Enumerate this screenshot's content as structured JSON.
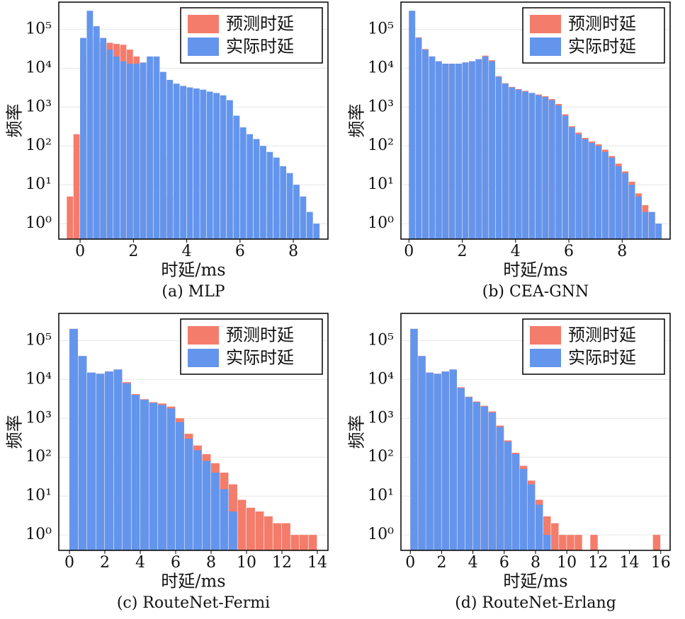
{
  "chart_data": [
    {
      "type": "histogram",
      "caption": "(a) MLP",
      "xlabel": "时延/ms",
      "ylabel": "频率",
      "log_y": true,
      "grid": true,
      "legend": "upper right",
      "bins": [
        -0.5,
        -0.25,
        0,
        0.25,
        0.5,
        0.75,
        1,
        1.25,
        1.5,
        1.75,
        2,
        2.25,
        2.5,
        2.75,
        3,
        3.25,
        3.5,
        3.75,
        4,
        4.25,
        4.5,
        4.75,
        5,
        5.25,
        5.5,
        5.75,
        6,
        6.25,
        6.5,
        6.75,
        7,
        7.25,
        7.5,
        7.75,
        8,
        8.25,
        8.5,
        8.75,
        9
      ],
      "series": [
        {
          "name": "预测时延",
          "color": "#f47c6b",
          "values": [
            5,
            200,
            20000,
            60000,
            50000,
            45000,
            45000,
            42000,
            40000,
            30000,
            20000,
            10000,
            3000,
            500,
            50,
            5,
            0,
            0,
            0,
            0,
            0,
            0,
            0,
            0,
            0,
            0,
            0,
            0,
            0,
            0,
            0,
            0,
            0,
            0,
            0,
            0,
            0,
            0
          ]
        },
        {
          "name": "实际时延",
          "color": "#6495ed",
          "values": [
            0,
            0,
            60000,
            300000,
            120000,
            60000,
            30000,
            20000,
            15000,
            13000,
            13000,
            14000,
            20000,
            20000,
            8000,
            5000,
            4000,
            3500,
            3200,
            3000,
            2800,
            2500,
            2300,
            2000,
            1500,
            600,
            300,
            200,
            150,
            100,
            70,
            50,
            30,
            20,
            10,
            5,
            2,
            1
          ]
        }
      ],
      "xlim": [
        -0.8,
        9.3
      ],
      "xticks": [
        0,
        2,
        4,
        6,
        8
      ],
      "ylim": [
        0.4,
        500000
      ],
      "yticks": [
        {
          "value": 1,
          "label": "10⁰"
        },
        {
          "value": 10,
          "label": "10¹"
        },
        {
          "value": 100,
          "label": "10²"
        },
        {
          "value": 1000,
          "label": "10³"
        },
        {
          "value": 10000,
          "label": "10⁴"
        },
        {
          "value": 100000,
          "label": "10⁵"
        }
      ]
    },
    {
      "type": "histogram",
      "caption": "(b) CEA-GNN",
      "xlabel": "时延/ms",
      "ylabel": "频率",
      "log_y": true,
      "grid": true,
      "legend": "upper right",
      "bins": [
        0,
        0.25,
        0.5,
        0.75,
        1,
        1.25,
        1.5,
        1.75,
        2,
        2.25,
        2.5,
        2.75,
        3,
        3.25,
        3.5,
        3.75,
        4,
        4.25,
        4.5,
        4.75,
        5,
        5.25,
        5.5,
        5.75,
        6,
        6.25,
        6.5,
        6.75,
        7,
        7.25,
        7.5,
        7.75,
        8,
        8.25,
        8.5,
        8.75,
        9,
        9.25,
        9.5
      ],
      "series": [
        {
          "name": "预测时延",
          "color": "#f47c6b",
          "values": [
            290000,
            62000,
            31000,
            20000,
            15000,
            13000,
            13000,
            13000,
            14000,
            15000,
            17000,
            21000,
            16000,
            6200,
            4100,
            3300,
            2900,
            2600,
            2300,
            2100,
            1900,
            1600,
            1200,
            650,
            320,
            220,
            160,
            130,
            110,
            80,
            55,
            35,
            22,
            12,
            6,
            3,
            2,
            1
          ]
        },
        {
          "name": "实际时延",
          "color": "#6495ed",
          "values": [
            300000,
            60000,
            30000,
            20000,
            15000,
            13000,
            13000,
            13000,
            14000,
            15000,
            17000,
            20000,
            15000,
            6000,
            4000,
            3200,
            2800,
            2500,
            2300,
            2000,
            1800,
            1500,
            1100,
            600,
            300,
            200,
            150,
            120,
            100,
            70,
            50,
            30,
            20,
            10,
            5,
            2,
            2,
            1
          ]
        }
      ],
      "xlim": [
        -0.3,
        9.8
      ],
      "xticks": [
        0,
        2,
        4,
        6,
        8
      ],
      "ylim": [
        0.4,
        500000
      ],
      "yticks": [
        {
          "value": 1,
          "label": "10⁰"
        },
        {
          "value": 10,
          "label": "10¹"
        },
        {
          "value": 100,
          "label": "10²"
        },
        {
          "value": 1000,
          "label": "10³"
        },
        {
          "value": 10000,
          "label": "10⁴"
        },
        {
          "value": 100000,
          "label": "10⁵"
        }
      ]
    },
    {
      "type": "histogram",
      "caption": "(c) RouteNet-Fermi",
      "xlabel": "时延/ms",
      "ylabel": "频率",
      "log_y": true,
      "grid": true,
      "legend": "upper right",
      "bins": [
        0,
        0.5,
        1,
        1.5,
        2,
        2.5,
        3,
        3.5,
        4,
        4.5,
        5,
        5.5,
        6,
        6.5,
        7,
        7.5,
        8,
        8.5,
        9,
        9.5,
        10,
        10.5,
        11,
        11.5,
        12,
        12.5,
        13,
        13.5,
        14
      ],
      "series": [
        {
          "name": "预测时延",
          "color": "#f47c6b",
          "values": [
            200000,
            40000,
            15000,
            14000,
            16000,
            18000,
            8500,
            4200,
            3100,
            2600,
            2400,
            2000,
            1000,
            400,
            200,
            120,
            70,
            40,
            20,
            8,
            5,
            4,
            3,
            2,
            2,
            1,
            1,
            1
          ]
        },
        {
          "name": "实际时延",
          "color": "#6495ed",
          "values": [
            200000,
            40000,
            15000,
            14000,
            16000,
            18000,
            8000,
            4000,
            3000,
            2500,
            2200,
            1800,
            800,
            300,
            150,
            80,
            40,
            15,
            4,
            0,
            0,
            0,
            0,
            0,
            0,
            0,
            0,
            0
          ]
        }
      ],
      "xlim": [
        -0.6,
        14.6
      ],
      "xticks": [
        0,
        2,
        4,
        6,
        8,
        10,
        12,
        14
      ],
      "ylim": [
        0.4,
        500000
      ],
      "yticks": [
        {
          "value": 1,
          "label": "10⁰"
        },
        {
          "value": 10,
          "label": "10¹"
        },
        {
          "value": 100,
          "label": "10²"
        },
        {
          "value": 1000,
          "label": "10³"
        },
        {
          "value": 10000,
          "label": "10⁴"
        },
        {
          "value": 100000,
          "label": "10⁵"
        }
      ]
    },
    {
      "type": "histogram",
      "caption": "(d) RouteNet-Erlang",
      "xlabel": "时延/ms",
      "ylabel": "频率",
      "log_y": true,
      "grid": true,
      "legend": "upper right",
      "bins": [
        0,
        0.5,
        1,
        1.5,
        2,
        2.5,
        3,
        3.5,
        4,
        4.5,
        5,
        5.5,
        6,
        6.5,
        7,
        7.5,
        8,
        8.5,
        9,
        9.5,
        10,
        10.5,
        11,
        11.5,
        12,
        12.5,
        13,
        13.5,
        14,
        14.5,
        15,
        15.5,
        16
      ],
      "series": [
        {
          "name": "预测时延",
          "color": "#f47c6b",
          "values": [
            200000,
            40000,
            15000,
            14000,
            16000,
            18000,
            6300,
            3600,
            2700,
            2100,
            1500,
            650,
            270,
            130,
            60,
            25,
            8,
            3,
            2,
            1,
            1,
            1,
            0,
            1,
            0,
            0,
            0,
            0,
            0,
            0,
            0,
            1
          ]
        },
        {
          "name": "实际时延",
          "color": "#6495ed",
          "values": [
            200000,
            40000,
            15000,
            14000,
            16000,
            18000,
            6000,
            3500,
            2600,
            2000,
            1400,
            600,
            250,
            120,
            50,
            20,
            6,
            1,
            0,
            0,
            0,
            0,
            0,
            0,
            0,
            0,
            0,
            0,
            0,
            0,
            0,
            0
          ]
        }
      ],
      "xlim": [
        -0.6,
        16.6
      ],
      "xticks": [
        0,
        2,
        4,
        6,
        8,
        10,
        12,
        14,
        16
      ],
      "ylim": [
        0.4,
        500000
      ],
      "yticks": [
        {
          "value": 1,
          "label": "10⁰"
        },
        {
          "value": 10,
          "label": "10¹"
        },
        {
          "value": 100,
          "label": "10²"
        },
        {
          "value": 1000,
          "label": "10³"
        },
        {
          "value": 10000,
          "label": "10⁴"
        },
        {
          "value": 100000,
          "label": "10⁵"
        }
      ]
    }
  ]
}
